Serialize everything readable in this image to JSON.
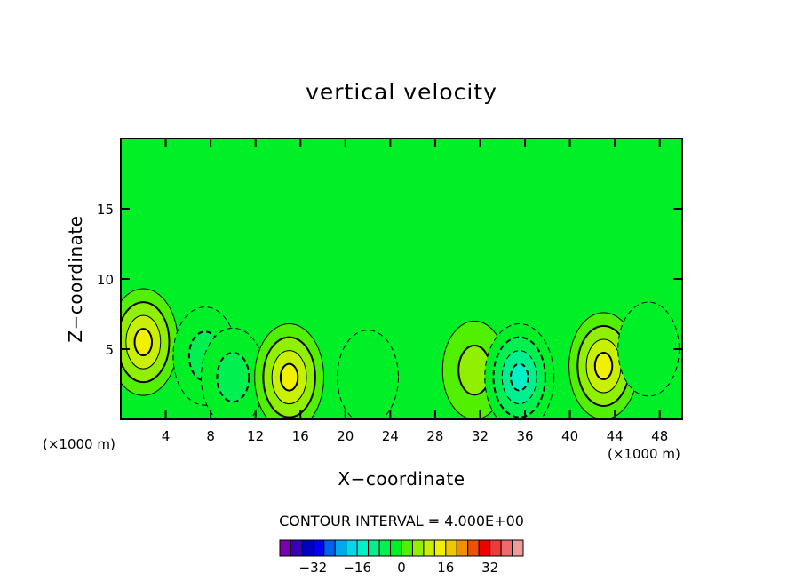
{
  "chart_data": {
    "type": "heatmap",
    "title": "vertical velocity",
    "xlabel": "X−coordinate",
    "ylabel": "Z−coordinate",
    "x_unit_note": "(×1000 m)",
    "y_unit_note": "(×1000 m)",
    "xlim": [
      0,
      50
    ],
    "ylim": [
      0,
      20
    ],
    "x_ticks": [
      4,
      8,
      12,
      16,
      20,
      24,
      28,
      32,
      36,
      40,
      44,
      48
    ],
    "x_tick_labels": [
      "4",
      "8",
      "12",
      "16",
      "20",
      "24",
      "28",
      "32",
      "36",
      "40",
      "44",
      "48"
    ],
    "y_ticks": [
      5,
      10,
      15
    ],
    "y_tick_labels": [
      "5",
      "10",
      "15"
    ],
    "contour_interval_text": "CONTOUR INTERVAL = 4.000E+00",
    "contour_interval": 4,
    "background_level": 0,
    "features": [
      {
        "kind": "updraft",
        "x": 2,
        "z": 5.5,
        "peak": 16
      },
      {
        "kind": "downdraft",
        "x": 7.5,
        "z": 4.5,
        "peak": -8
      },
      {
        "kind": "downdraft",
        "x": 10,
        "z": 3,
        "peak": -8
      },
      {
        "kind": "updraft",
        "x": 15,
        "z": 3,
        "peak": 16
      },
      {
        "kind": "downdraft",
        "x": 22,
        "z": 3,
        "peak": -4
      },
      {
        "kind": "updraft",
        "x": 31.5,
        "z": 3.5,
        "peak": 8
      },
      {
        "kind": "downdraft",
        "x": 35.5,
        "z": 3,
        "peak": -16
      },
      {
        "kind": "updraft",
        "x": 43,
        "z": 3.8,
        "peak": 16
      },
      {
        "kind": "downdraft",
        "x": 47,
        "z": 5,
        "peak": -4
      }
    ],
    "colorbar": {
      "colors": [
        "#7a00b0",
        "#3a00b8",
        "#0000c8",
        "#0000f0",
        "#0060f0",
        "#00a8f0",
        "#00d8f0",
        "#00f0c8",
        "#00f090",
        "#00f050",
        "#00f028",
        "#50f000",
        "#90f000",
        "#c8f000",
        "#f0f000",
        "#f0c800",
        "#f09000",
        "#f05000",
        "#f00000",
        "#f03a3a",
        "#f06a6a",
        "#f09a9a"
      ],
      "tick_values": [
        -32,
        -16,
        0,
        16,
        32
      ],
      "tick_labels": [
        "−32",
        "−16",
        "0",
        "16",
        "32"
      ],
      "min": -44,
      "max": 44
    }
  }
}
